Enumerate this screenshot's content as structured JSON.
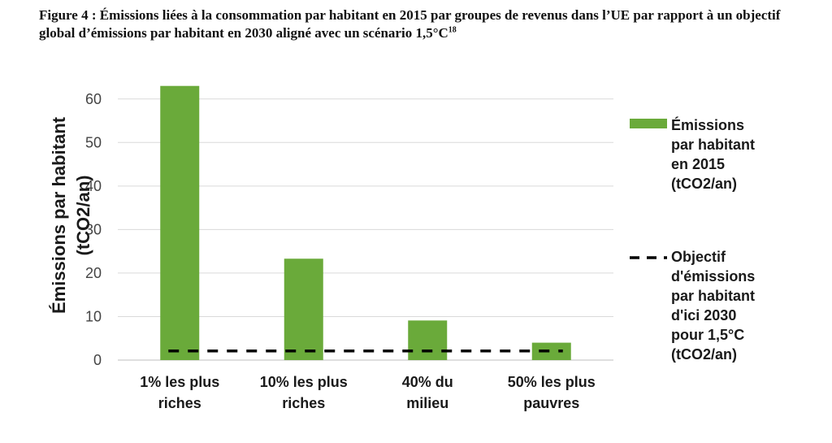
{
  "caption": {
    "text": "Figure 4 : Émissions liées à la consommation par habitant en 2015 par groupes de revenus dans l’UE par rapport à un objectif global d’émissions par habitant en 2030 aligné avec un scénario 1,5°C",
    "footnote": "18"
  },
  "chart_data": {
    "type": "bar",
    "categories": [
      "1% les plus riches",
      "10% les plus riches",
      "40% du milieu",
      "50% les plus pauvres"
    ],
    "category_lines": [
      [
        "1% les plus",
        "riches"
      ],
      [
        "10% les plus",
        "riches"
      ],
      [
        "40% du",
        "milieu"
      ],
      [
        "50% les plus",
        "pauvres"
      ]
    ],
    "series": [
      {
        "name": "Émissions par habitant en 2015 (tCO2/an)",
        "legend_lines": [
          "Émissions",
          "par habitant",
          "en 2015",
          "(tCO2/an)"
        ],
        "values": [
          63,
          23.3,
          9.1,
          4.0
        ],
        "color": "#6aaa3a"
      }
    ],
    "target": {
      "name": "Objectif d'émissions par habitant d'ici 2030 pour 1,5°C (tCO2/an)",
      "legend_lines": [
        "Objectif",
        "d'émissions",
        "par habitant",
        "d'ici 2030",
        "pour 1,5°C",
        "(tCO2/an)"
      ],
      "value": 2.1,
      "style": "dashed",
      "color": "#000000"
    },
    "ylabel_lines": [
      "Émissions par habitant",
      "(tCO2/an)"
    ],
    "yticks": [
      0,
      10,
      20,
      30,
      40,
      50,
      60
    ],
    "ylim": [
      0,
      65
    ],
    "grid": true,
    "legend_position": "right"
  }
}
